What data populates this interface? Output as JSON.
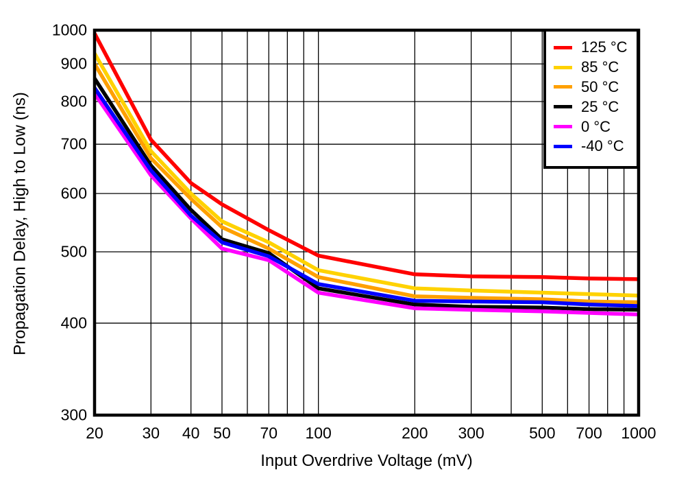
{
  "figure": {
    "background": "#FFFFFF",
    "frame_color": "#000000",
    "grid_color": "#000000"
  },
  "axes": {
    "x_title": "Input Overdrive Voltage (mV)",
    "y_title": "Propagation Delay, High to Low (ns)"
  },
  "chart_data": {
    "type": "line",
    "title": "",
    "xlabel": "Input Overdrive Voltage (mV)",
    "ylabel": "Propagation Delay, High to Low (ns)",
    "x_scale": "log",
    "y_scale": "log",
    "xlim": [
      20,
      1000
    ],
    "ylim": [
      300,
      1000
    ],
    "grid": true,
    "legend_position": "top-right",
    "x_ticks": [
      20,
      30,
      40,
      50,
      70,
      100,
      200,
      300,
      500,
      700,
      1000
    ],
    "y_ticks": [
      300,
      400,
      500,
      600,
      700,
      800,
      900,
      1000
    ],
    "x_gridlines": [
      30,
      40,
      50,
      60,
      70,
      80,
      90,
      100,
      200,
      300,
      400,
      500,
      600,
      700,
      800,
      900
    ],
    "y_gridlines": [
      400,
      500,
      600,
      700,
      800,
      900
    ],
    "x": [
      20,
      30,
      40,
      50,
      70,
      100,
      200,
      300,
      500,
      700,
      1000
    ],
    "series": [
      {
        "name": "125 °C",
        "color": "#FF0000",
        "values": [
          990,
          710,
          620,
          580,
          535,
          494,
          466,
          463,
          462,
          460,
          459
        ]
      },
      {
        "name": "85 °C",
        "color": "#FFD200",
        "values": [
          930,
          685,
          600,
          550,
          515,
          472,
          446,
          443,
          440,
          438,
          436
        ]
      },
      {
        "name": "50 °C",
        "color": "#FFA000",
        "values": [
          900,
          670,
          590,
          540,
          505,
          462,
          435,
          433,
          431,
          428,
          427
        ]
      },
      {
        "name": "25 °C",
        "color": "#000000",
        "values": [
          860,
          655,
          570,
          520,
          498,
          446,
          424,
          421,
          420,
          418,
          417
        ]
      },
      {
        "name": "0 °C",
        "color": "#FF00FF",
        "values": [
          820,
          635,
          555,
          505,
          487,
          440,
          419,
          417,
          415,
          413,
          411
        ]
      },
      {
        "name": "-40 °C",
        "color": "#0000FF",
        "values": [
          835,
          645,
          560,
          515,
          493,
          452,
          429,
          428,
          427,
          424,
          422
        ]
      }
    ]
  }
}
